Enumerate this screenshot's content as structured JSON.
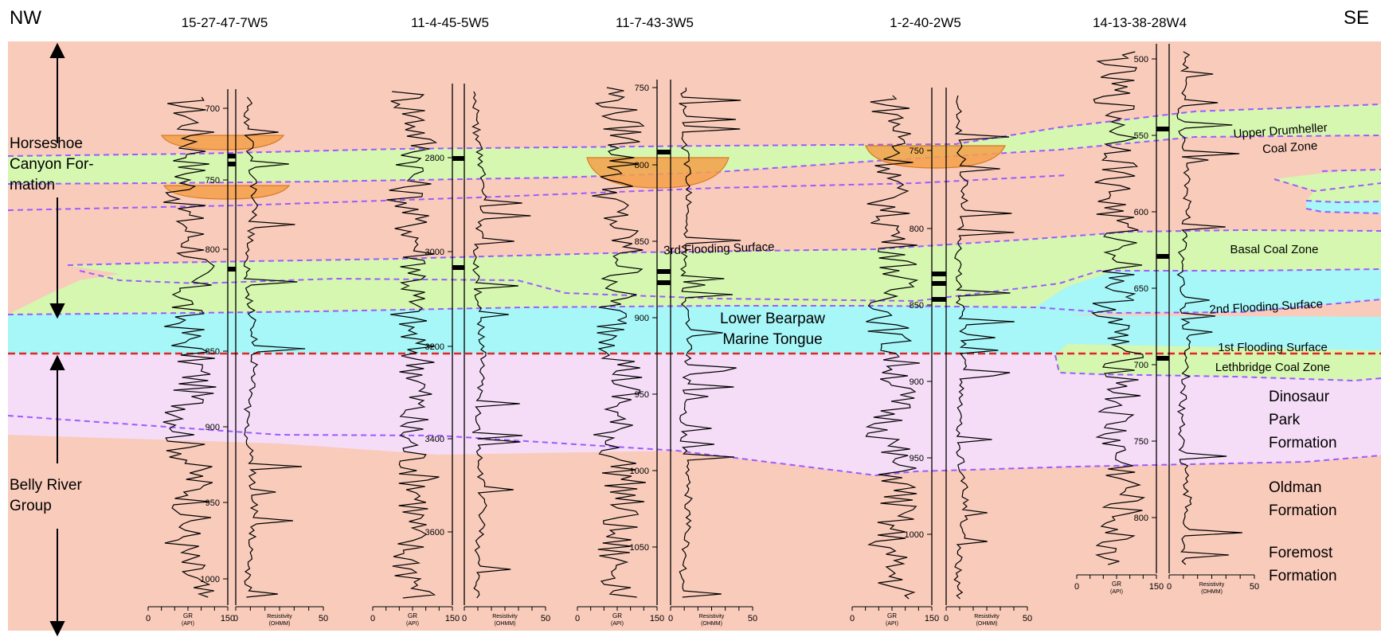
{
  "orientation": {
    "left": "NW",
    "right": "SE"
  },
  "colors": {
    "background": "#f9cbbb",
    "green_band": "#d6f7b0",
    "cyan_band": "#a7f6f8",
    "pink_band": "#f5dcf7",
    "coal_bowl": "#f5a04a",
    "dashed_purple": "#9b5cff",
    "dashed_red": "#e0262b",
    "log_line": "#000000"
  },
  "wells": [
    {
      "name": "15-27-47-7W5",
      "depths": [
        {
          "label": "700",
          "at": 136
        },
        {
          "label": "750",
          "at": 226
        },
        {
          "label": "800",
          "at": 313
        },
        {
          "label": "850",
          "at": 441
        },
        {
          "label": "900",
          "at": 536
        },
        {
          "label": "950",
          "at": 631
        },
        {
          "label": "1000",
          "at": 727
        }
      ],
      "gr_label": "GR",
      "gr_unit": "(API)",
      "gr_scale": [
        "0",
        "150"
      ],
      "res_label": "Resistivity",
      "res_unit": "(OHMM)",
      "res_scale": [
        "0",
        "50"
      ]
    },
    {
      "name": "11-4-45-5W5",
      "depths": [
        {
          "label": "2800",
          "at": 198
        },
        {
          "label": "3000",
          "at": 316
        },
        {
          "label": "3200",
          "at": 435
        },
        {
          "label": "3400",
          "at": 551
        },
        {
          "label": "3600",
          "at": 668
        }
      ],
      "gr_label": "GR",
      "gr_unit": "(API)",
      "gr_scale": [
        "0",
        "150"
      ],
      "res_label": "Resistivity",
      "res_unit": "(OHMM)",
      "res_scale": [
        "0",
        "50"
      ]
    },
    {
      "name": "11-7-43-3W5",
      "depths": [
        {
          "label": "750",
          "at": 110
        },
        {
          "label": "800",
          "at": 207
        },
        {
          "label": "850",
          "at": 303
        },
        {
          "label": "900",
          "at": 399
        },
        {
          "label": "950",
          "at": 495
        },
        {
          "label": "1000",
          "at": 591
        },
        {
          "label": "1050",
          "at": 687
        }
      ],
      "gr_label": "GR",
      "gr_unit": "(API)",
      "gr_scale": [
        "0",
        "150"
      ],
      "res_label": "Resistivity",
      "res_unit": "(OHMM)",
      "res_scale": [
        "0",
        "50"
      ]
    },
    {
      "name": "1-2-40-2W5",
      "depths": [
        {
          "label": "750",
          "at": 189
        },
        {
          "label": "800",
          "at": 287
        },
        {
          "label": "850",
          "at": 383
        },
        {
          "label": "900",
          "at": 479
        },
        {
          "label": "950",
          "at": 575
        },
        {
          "label": "1000",
          "at": 671
        }
      ],
      "gr_label": "GR",
      "gr_unit": "(API)",
      "gr_scale": [
        "0",
        "150"
      ],
      "res_label": "Resistivity",
      "res_unit": "(OHMM)",
      "res_scale": [
        "0",
        "50"
      ]
    },
    {
      "name": "14-13-38-28W4",
      "depths": [
        {
          "label": "500",
          "at": 74
        },
        {
          "label": "550",
          "at": 170
        },
        {
          "label": "600",
          "at": 266
        },
        {
          "label": "650",
          "at": 362
        },
        {
          "label": "700",
          "at": 458
        },
        {
          "label": "750",
          "at": 554
        },
        {
          "label": "800",
          "at": 650
        }
      ],
      "gr_label": "GR",
      "gr_unit": "(API)",
      "gr_scale": [
        "0",
        "150"
      ],
      "res_label": "Resistivity",
      "res_unit": "(OHMM)",
      "res_scale": [
        "0",
        "50"
      ]
    }
  ],
  "units_left": {
    "horseshoe": [
      "Horseshoe",
      "Canyon For-",
      "mation"
    ],
    "belly_river": [
      "Belly River",
      "Group"
    ]
  },
  "labels": {
    "third_flooding": "3rd Flooding Surface",
    "lower_bearpaw": [
      "Lower Bearpaw",
      "Marine Tongue"
    ],
    "upper_drumheller": [
      "Upper Drumheller",
      "Coal Zone"
    ],
    "basal_coal": "Basal Coal Zone",
    "second_flooding": "2nd Flooding Surface",
    "first_flooding": "1st Flooding Surface",
    "lethbridge": "Lethbridge Coal Zone",
    "dinosaur_park": [
      "Dinosaur",
      "Park",
      "Formation"
    ],
    "oldman": [
      "Oldman",
      "Formation"
    ],
    "foremost": [
      "Foremost",
      "Formation"
    ]
  }
}
